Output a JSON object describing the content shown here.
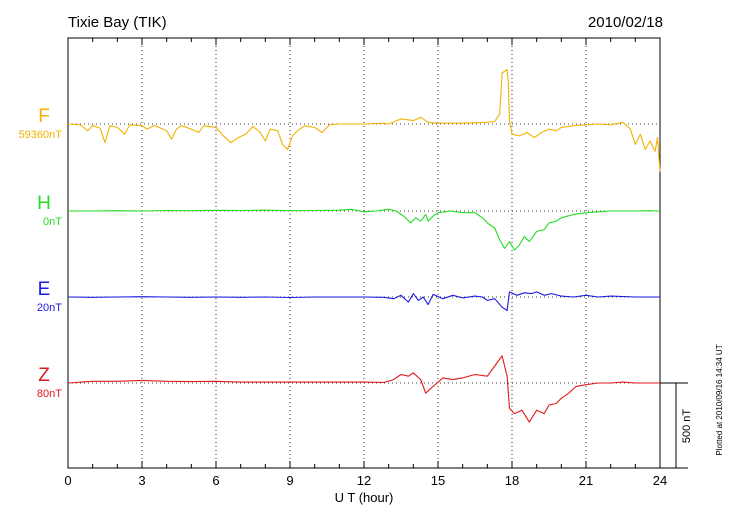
{
  "header": {
    "station": "Tixie Bay (TIK)",
    "date": "2010/02/18"
  },
  "footer": {
    "plotted_note": "Plotted at 2010/09/16 14:34 UT",
    "scale_bar_label": "500 nT"
  },
  "chart_data": {
    "type": "line",
    "title": "Tixie Bay (TIK)",
    "subtitle": "2010/02/18",
    "xlabel": "U T (hour)",
    "xlim": [
      0,
      24
    ],
    "xticks": [
      0,
      3,
      6,
      9,
      12,
      15,
      18,
      21,
      24
    ],
    "y_units": "nT",
    "grid": true,
    "scale_bar_nT": 500,
    "series": [
      {
        "name": "F",
        "offset_label": "59360nT",
        "color": "#f2b200",
        "points": [
          [
            0,
            0
          ],
          [
            0.5,
            -5
          ],
          [
            0.8,
            -40
          ],
          [
            1.0,
            -8
          ],
          [
            1.3,
            -25
          ],
          [
            1.5,
            -110
          ],
          [
            1.7,
            -10
          ],
          [
            2.0,
            -20
          ],
          [
            2.3,
            -60
          ],
          [
            2.5,
            -5
          ],
          [
            3.0,
            -10
          ],
          [
            3.2,
            -30
          ],
          [
            3.5,
            -8
          ],
          [
            4.0,
            -40
          ],
          [
            4.2,
            -90
          ],
          [
            4.4,
            -30
          ],
          [
            4.6,
            -10
          ],
          [
            5.0,
            -30
          ],
          [
            5.3,
            -50
          ],
          [
            5.5,
            -10
          ],
          [
            6.0,
            -20
          ],
          [
            6.3,
            -70
          ],
          [
            6.6,
            -110
          ],
          [
            6.9,
            -80
          ],
          [
            7.2,
            -60
          ],
          [
            7.5,
            -15
          ],
          [
            7.8,
            -50
          ],
          [
            8.0,
            -100
          ],
          [
            8.2,
            -30
          ],
          [
            8.5,
            -40
          ],
          [
            8.7,
            -120
          ],
          [
            8.9,
            -150
          ],
          [
            9.1,
            -70
          ],
          [
            9.3,
            -40
          ],
          [
            9.6,
            -10
          ],
          [
            10.0,
            -20
          ],
          [
            10.3,
            -50
          ],
          [
            10.6,
            -5
          ],
          [
            11.0,
            0
          ],
          [
            12.0,
            0
          ],
          [
            12.8,
            5
          ],
          [
            13.0,
            0
          ],
          [
            13.5,
            30
          ],
          [
            14.0,
            20
          ],
          [
            14.3,
            40
          ],
          [
            14.6,
            10
          ],
          [
            15.0,
            5
          ],
          [
            16.0,
            5
          ],
          [
            17.0,
            10
          ],
          [
            17.3,
            15
          ],
          [
            17.5,
            60
          ],
          [
            17.6,
            300
          ],
          [
            17.8,
            320
          ],
          [
            17.85,
            240
          ],
          [
            17.9,
            20
          ],
          [
            18.0,
            -60
          ],
          [
            18.3,
            -70
          ],
          [
            18.6,
            -50
          ],
          [
            18.9,
            -80
          ],
          [
            19.2,
            -50
          ],
          [
            19.5,
            -30
          ],
          [
            19.8,
            -40
          ],
          [
            20.0,
            -20
          ],
          [
            20.5,
            -10
          ],
          [
            21.0,
            -5
          ],
          [
            21.5,
            0
          ],
          [
            22.0,
            -5
          ],
          [
            22.5,
            10
          ],
          [
            22.8,
            -30
          ],
          [
            23.0,
            -120
          ],
          [
            23.2,
            -60
          ],
          [
            23.4,
            -150
          ],
          [
            23.6,
            -100
          ],
          [
            23.8,
            -160
          ],
          [
            23.9,
            -80
          ],
          [
            24.0,
            -280
          ]
        ]
      },
      {
        "name": "H",
        "offset_label": "0nT",
        "color": "#22dd22",
        "points": [
          [
            0,
            0
          ],
          [
            1,
            0
          ],
          [
            2,
            2
          ],
          [
            3,
            0
          ],
          [
            4,
            3
          ],
          [
            5,
            2
          ],
          [
            6,
            4
          ],
          [
            7,
            3
          ],
          [
            8,
            5
          ],
          [
            9,
            2
          ],
          [
            10,
            3
          ],
          [
            11,
            5
          ],
          [
            11.5,
            10
          ],
          [
            12,
            -5
          ],
          [
            12.5,
            0
          ],
          [
            13,
            10
          ],
          [
            13.3,
            0
          ],
          [
            13.6,
            -30
          ],
          [
            13.9,
            -70
          ],
          [
            14.1,
            -40
          ],
          [
            14.3,
            -60
          ],
          [
            14.5,
            -20
          ],
          [
            14.6,
            -60
          ],
          [
            14.8,
            -30
          ],
          [
            15.0,
            -10
          ],
          [
            15.5,
            0
          ],
          [
            16.0,
            -10
          ],
          [
            16.5,
            -10
          ],
          [
            16.8,
            -40
          ],
          [
            17.0,
            -70
          ],
          [
            17.3,
            -100
          ],
          [
            17.5,
            -170
          ],
          [
            17.7,
            -220
          ],
          [
            17.9,
            -180
          ],
          [
            18.1,
            -230
          ],
          [
            18.3,
            -200
          ],
          [
            18.5,
            -150
          ],
          [
            18.7,
            -180
          ],
          [
            19.0,
            -120
          ],
          [
            19.3,
            -110
          ],
          [
            19.5,
            -70
          ],
          [
            19.8,
            -60
          ],
          [
            20.0,
            -40
          ],
          [
            20.5,
            -20
          ],
          [
            21.0,
            -10
          ],
          [
            21.5,
            -5
          ],
          [
            22.0,
            0
          ],
          [
            23.0,
            0
          ],
          [
            23.5,
            2
          ],
          [
            24.0,
            0
          ]
        ]
      },
      {
        "name": "E",
        "offset_label": "20nT",
        "color": "#1a1ae0",
        "points": [
          [
            0,
            0
          ],
          [
            1,
            -2
          ],
          [
            2,
            0
          ],
          [
            3,
            2
          ],
          [
            4,
            0
          ],
          [
            5,
            -2
          ],
          [
            6,
            0
          ],
          [
            7,
            -2
          ],
          [
            8,
            0
          ],
          [
            9,
            -3
          ],
          [
            10,
            0
          ],
          [
            11,
            0
          ],
          [
            12,
            0
          ],
          [
            12.8,
            -2
          ],
          [
            13.2,
            -10
          ],
          [
            13.5,
            10
          ],
          [
            13.8,
            -30
          ],
          [
            14.0,
            20
          ],
          [
            14.2,
            -20
          ],
          [
            14.4,
            0
          ],
          [
            14.6,
            -45
          ],
          [
            14.8,
            15
          ],
          [
            15.2,
            -10
          ],
          [
            15.6,
            10
          ],
          [
            16.0,
            -5
          ],
          [
            16.5,
            5
          ],
          [
            16.8,
            0
          ],
          [
            17.0,
            -20
          ],
          [
            17.3,
            -10
          ],
          [
            17.6,
            -60
          ],
          [
            17.8,
            -80
          ],
          [
            17.9,
            30
          ],
          [
            18.2,
            10
          ],
          [
            18.5,
            25
          ],
          [
            18.8,
            20
          ],
          [
            19.0,
            30
          ],
          [
            19.3,
            10
          ],
          [
            19.6,
            20
          ],
          [
            20.0,
            5
          ],
          [
            20.5,
            0
          ],
          [
            21.0,
            10
          ],
          [
            21.5,
            0
          ],
          [
            22.0,
            5
          ],
          [
            23.0,
            0
          ],
          [
            24.0,
            0
          ]
        ]
      },
      {
        "name": "Z",
        "offset_label": "80nT",
        "color": "#e01a1a",
        "points": [
          [
            0,
            0
          ],
          [
            1,
            10
          ],
          [
            2,
            10
          ],
          [
            3,
            15
          ],
          [
            4,
            10
          ],
          [
            5,
            8
          ],
          [
            6,
            10
          ],
          [
            7,
            5
          ],
          [
            8,
            5
          ],
          [
            9,
            5
          ],
          [
            10,
            5
          ],
          [
            11,
            5
          ],
          [
            12,
            5
          ],
          [
            12.8,
            3
          ],
          [
            13.2,
            20
          ],
          [
            13.5,
            50
          ],
          [
            13.8,
            40
          ],
          [
            14.0,
            60
          ],
          [
            14.3,
            20
          ],
          [
            14.5,
            -60
          ],
          [
            14.8,
            -20
          ],
          [
            15.2,
            30
          ],
          [
            15.6,
            20
          ],
          [
            16.0,
            30
          ],
          [
            16.5,
            50
          ],
          [
            17.0,
            40
          ],
          [
            17.3,
            100
          ],
          [
            17.6,
            160
          ],
          [
            17.8,
            40
          ],
          [
            17.9,
            -150
          ],
          [
            18.1,
            -180
          ],
          [
            18.4,
            -160
          ],
          [
            18.7,
            -230
          ],
          [
            19.0,
            -160
          ],
          [
            19.3,
            -180
          ],
          [
            19.5,
            -130
          ],
          [
            19.8,
            -120
          ],
          [
            20.0,
            -90
          ],
          [
            20.3,
            -60
          ],
          [
            20.6,
            -20
          ],
          [
            21.0,
            -10
          ],
          [
            21.5,
            0
          ],
          [
            22.0,
            0
          ],
          [
            22.5,
            5
          ],
          [
            23.0,
            0
          ],
          [
            24.0,
            0
          ]
        ]
      }
    ]
  }
}
